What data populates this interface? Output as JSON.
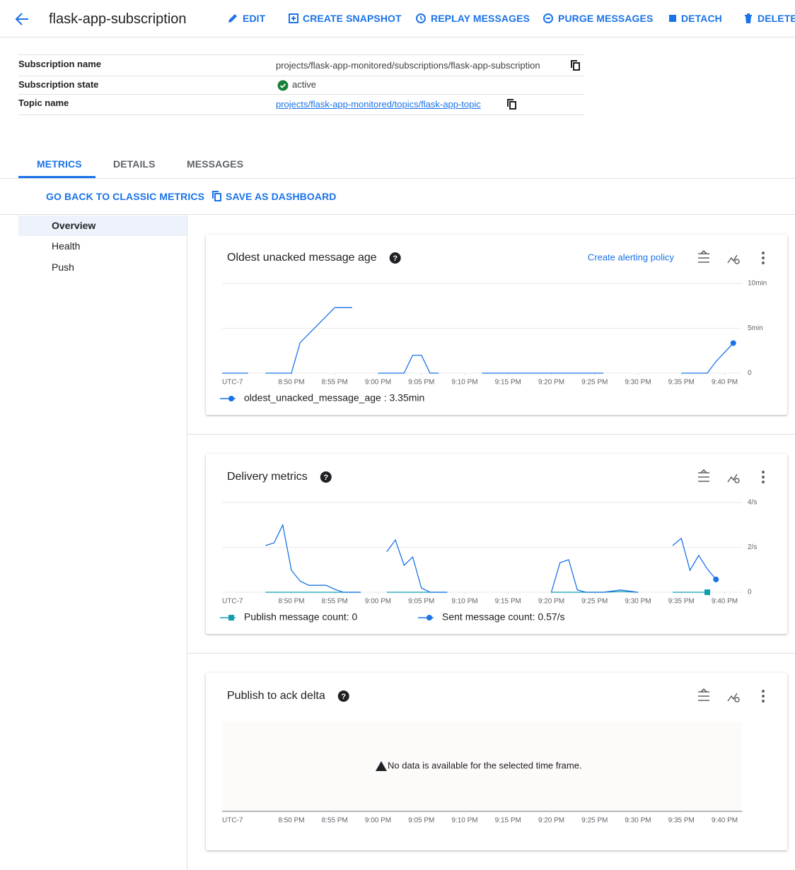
{
  "header": {
    "title": "flask-app-subscription",
    "actions": [
      "EDIT",
      "CREATE SNAPSHOT",
      "REPLAY MESSAGES",
      "PURGE MESSAGES",
      "DETACH",
      "DELETE"
    ]
  },
  "details": {
    "rows": [
      [
        "Subscription name",
        "projects/flask-app-monitored/subscriptions/flask-app-subscription"
      ],
      [
        "Subscription state",
        "active"
      ],
      [
        "Topic name",
        "projects/flask-app-monitored/topics/flask-app-topic"
      ]
    ]
  },
  "tabs": [
    "METRICS",
    "DETAILS",
    "MESSAGES"
  ],
  "metric_actions": [
    "GO BACK TO CLASSIC METRICS",
    "SAVE AS DASHBOARD"
  ],
  "sidebar": [
    "Overview",
    "Health",
    "Push"
  ],
  "chart_data": [
    {
      "type": "line",
      "title": "Oldest unacked message age",
      "action": "Create alerting policy",
      "timezone": "UTC-7",
      "grid": true,
      "x": [
        "20:42",
        "20:45",
        "20:46",
        "20:47",
        "20:50",
        "20:51",
        "20:55",
        "20:57",
        "20:59",
        "21:00",
        "21:03",
        "21:04",
        "21:05",
        "21:06",
        "21:07",
        "21:10",
        "21:12",
        "21:26",
        "21:30",
        "21:35",
        "21:38",
        "21:39",
        "21:41"
      ],
      "xlim": [
        "20:42",
        "21:42"
      ],
      "xticks": [
        {
          "value": "20:50",
          "label": "8:50 PM"
        },
        {
          "value": "20:55",
          "label": "8:55 PM"
        },
        {
          "value": "21:00",
          "label": "9:00 PM"
        },
        {
          "value": "21:05",
          "label": "9:05 PM"
        },
        {
          "value": "21:10",
          "label": "9:10 PM"
        },
        {
          "value": "21:15",
          "label": "9:15 PM"
        },
        {
          "value": "21:20",
          "label": "9:20 PM"
        },
        {
          "value": "21:25",
          "label": "9:25 PM"
        },
        {
          "value": "21:30",
          "label": "9:30 PM"
        },
        {
          "value": "21:35",
          "label": "9:35 PM"
        },
        {
          "value": "21:40",
          "label": "9:40 PM"
        }
      ],
      "ylim": [
        0,
        10
      ],
      "yticks": [
        0,
        {
          "value": 5,
          "label": "5min"
        },
        {
          "value": 10,
          "label": "10min"
        }
      ],
      "series": [
        {
          "name": "oldest_unacked_message_age : 3.35min",
          "color": "#1a73e8",
          "marker": "circle",
          "values": [
            0,
            0,
            null,
            0,
            0,
            3.4,
            7.3,
            7.3,
            null,
            0,
            0,
            2,
            2,
            0,
            0,
            null,
            0,
            0,
            null,
            0,
            0,
            1.3,
            3.35
          ]
        }
      ]
    },
    {
      "type": "line",
      "title": "Delivery metrics",
      "timezone": "UTC-7",
      "grid": true,
      "x": [
        "20:47",
        "20:48",
        "20:49",
        "20:50",
        "20:51",
        "20:52",
        "20:54",
        "20:55",
        "20:56",
        "20:58",
        "20:59",
        "21:01",
        "21:02",
        "21:03",
        "21:04",
        "21:05",
        "21:06",
        "21:08",
        "21:10",
        "21:20",
        "21:21",
        "21:22",
        "21:23",
        "21:24",
        "21:26",
        "21:28",
        "21:30",
        "21:32",
        "21:34",
        "21:35",
        "21:36",
        "21:37",
        "21:38",
        "21:39"
      ],
      "xlim": [
        "20:42",
        "21:42"
      ],
      "xticks": [
        {
          "value": "20:50",
          "label": "8:50 PM"
        },
        {
          "value": "20:55",
          "label": "8:55 PM"
        },
        {
          "value": "21:00",
          "label": "9:00 PM"
        },
        {
          "value": "21:05",
          "label": "9:05 PM"
        },
        {
          "value": "21:10",
          "label": "9:10 PM"
        },
        {
          "value": "21:15",
          "label": "9:15 PM"
        },
        {
          "value": "21:20",
          "label": "9:20 PM"
        },
        {
          "value": "21:25",
          "label": "9:25 PM"
        },
        {
          "value": "21:30",
          "label": "9:30 PM"
        },
        {
          "value": "21:35",
          "label": "9:35 PM"
        },
        {
          "value": "21:40",
          "label": "9:40 PM"
        }
      ],
      "ylim": [
        0,
        4
      ],
      "yticks": [
        0,
        {
          "value": 2,
          "label": "2/s"
        },
        {
          "value": 4,
          "label": "4/s"
        }
      ],
      "series": [
        {
          "name": "Publish message count: 0",
          "color": "#129eaf",
          "marker": "square",
          "values": [
            0,
            0,
            0,
            0,
            0,
            0,
            0,
            0,
            0,
            0,
            null,
            0,
            0,
            0,
            0,
            0,
            0,
            0,
            null,
            0,
            0,
            0,
            0,
            0,
            0,
            0.03,
            0,
            null,
            0,
            0,
            0,
            0,
            0,
            null
          ]
        },
        {
          "name": "Sent message count: 0.57/s",
          "color": "#1a73e8",
          "marker": "circle",
          "values": [
            2.08,
            2.2,
            3.0,
            0.98,
            0.5,
            0.31,
            0.31,
            0.13,
            0,
            0,
            null,
            1.8,
            2.33,
            1.2,
            1.57,
            0.19,
            0,
            0,
            null,
            0,
            1.32,
            1.45,
            0.1,
            0,
            0,
            0.1,
            0,
            null,
            2.08,
            2.4,
            0.98,
            1.64,
            1.04,
            0.57
          ]
        }
      ]
    },
    {
      "type": "line",
      "title": "Publish to ack delta",
      "timezone": "UTC-7",
      "message": "No data is available for the selected time frame.",
      "xlim": [
        "20:42",
        "21:42"
      ],
      "xticks": [
        {
          "value": "20:50",
          "label": "8:50 PM"
        },
        {
          "value": "20:55",
          "label": "8:55 PM"
        },
        {
          "value": "21:00",
          "label": "9:00 PM"
        },
        {
          "value": "21:05",
          "label": "9:05 PM"
        },
        {
          "value": "21:10",
          "label": "9:10 PM"
        },
        {
          "value": "21:15",
          "label": "9:15 PM"
        },
        {
          "value": "21:20",
          "label": "9:20 PM"
        },
        {
          "value": "21:25",
          "label": "9:25 PM"
        },
        {
          "value": "21:30",
          "label": "9:30 PM"
        },
        {
          "value": "21:35",
          "label": "9:35 PM"
        },
        {
          "value": "21:40",
          "label": "9:40 PM"
        }
      ],
      "series": []
    }
  ]
}
